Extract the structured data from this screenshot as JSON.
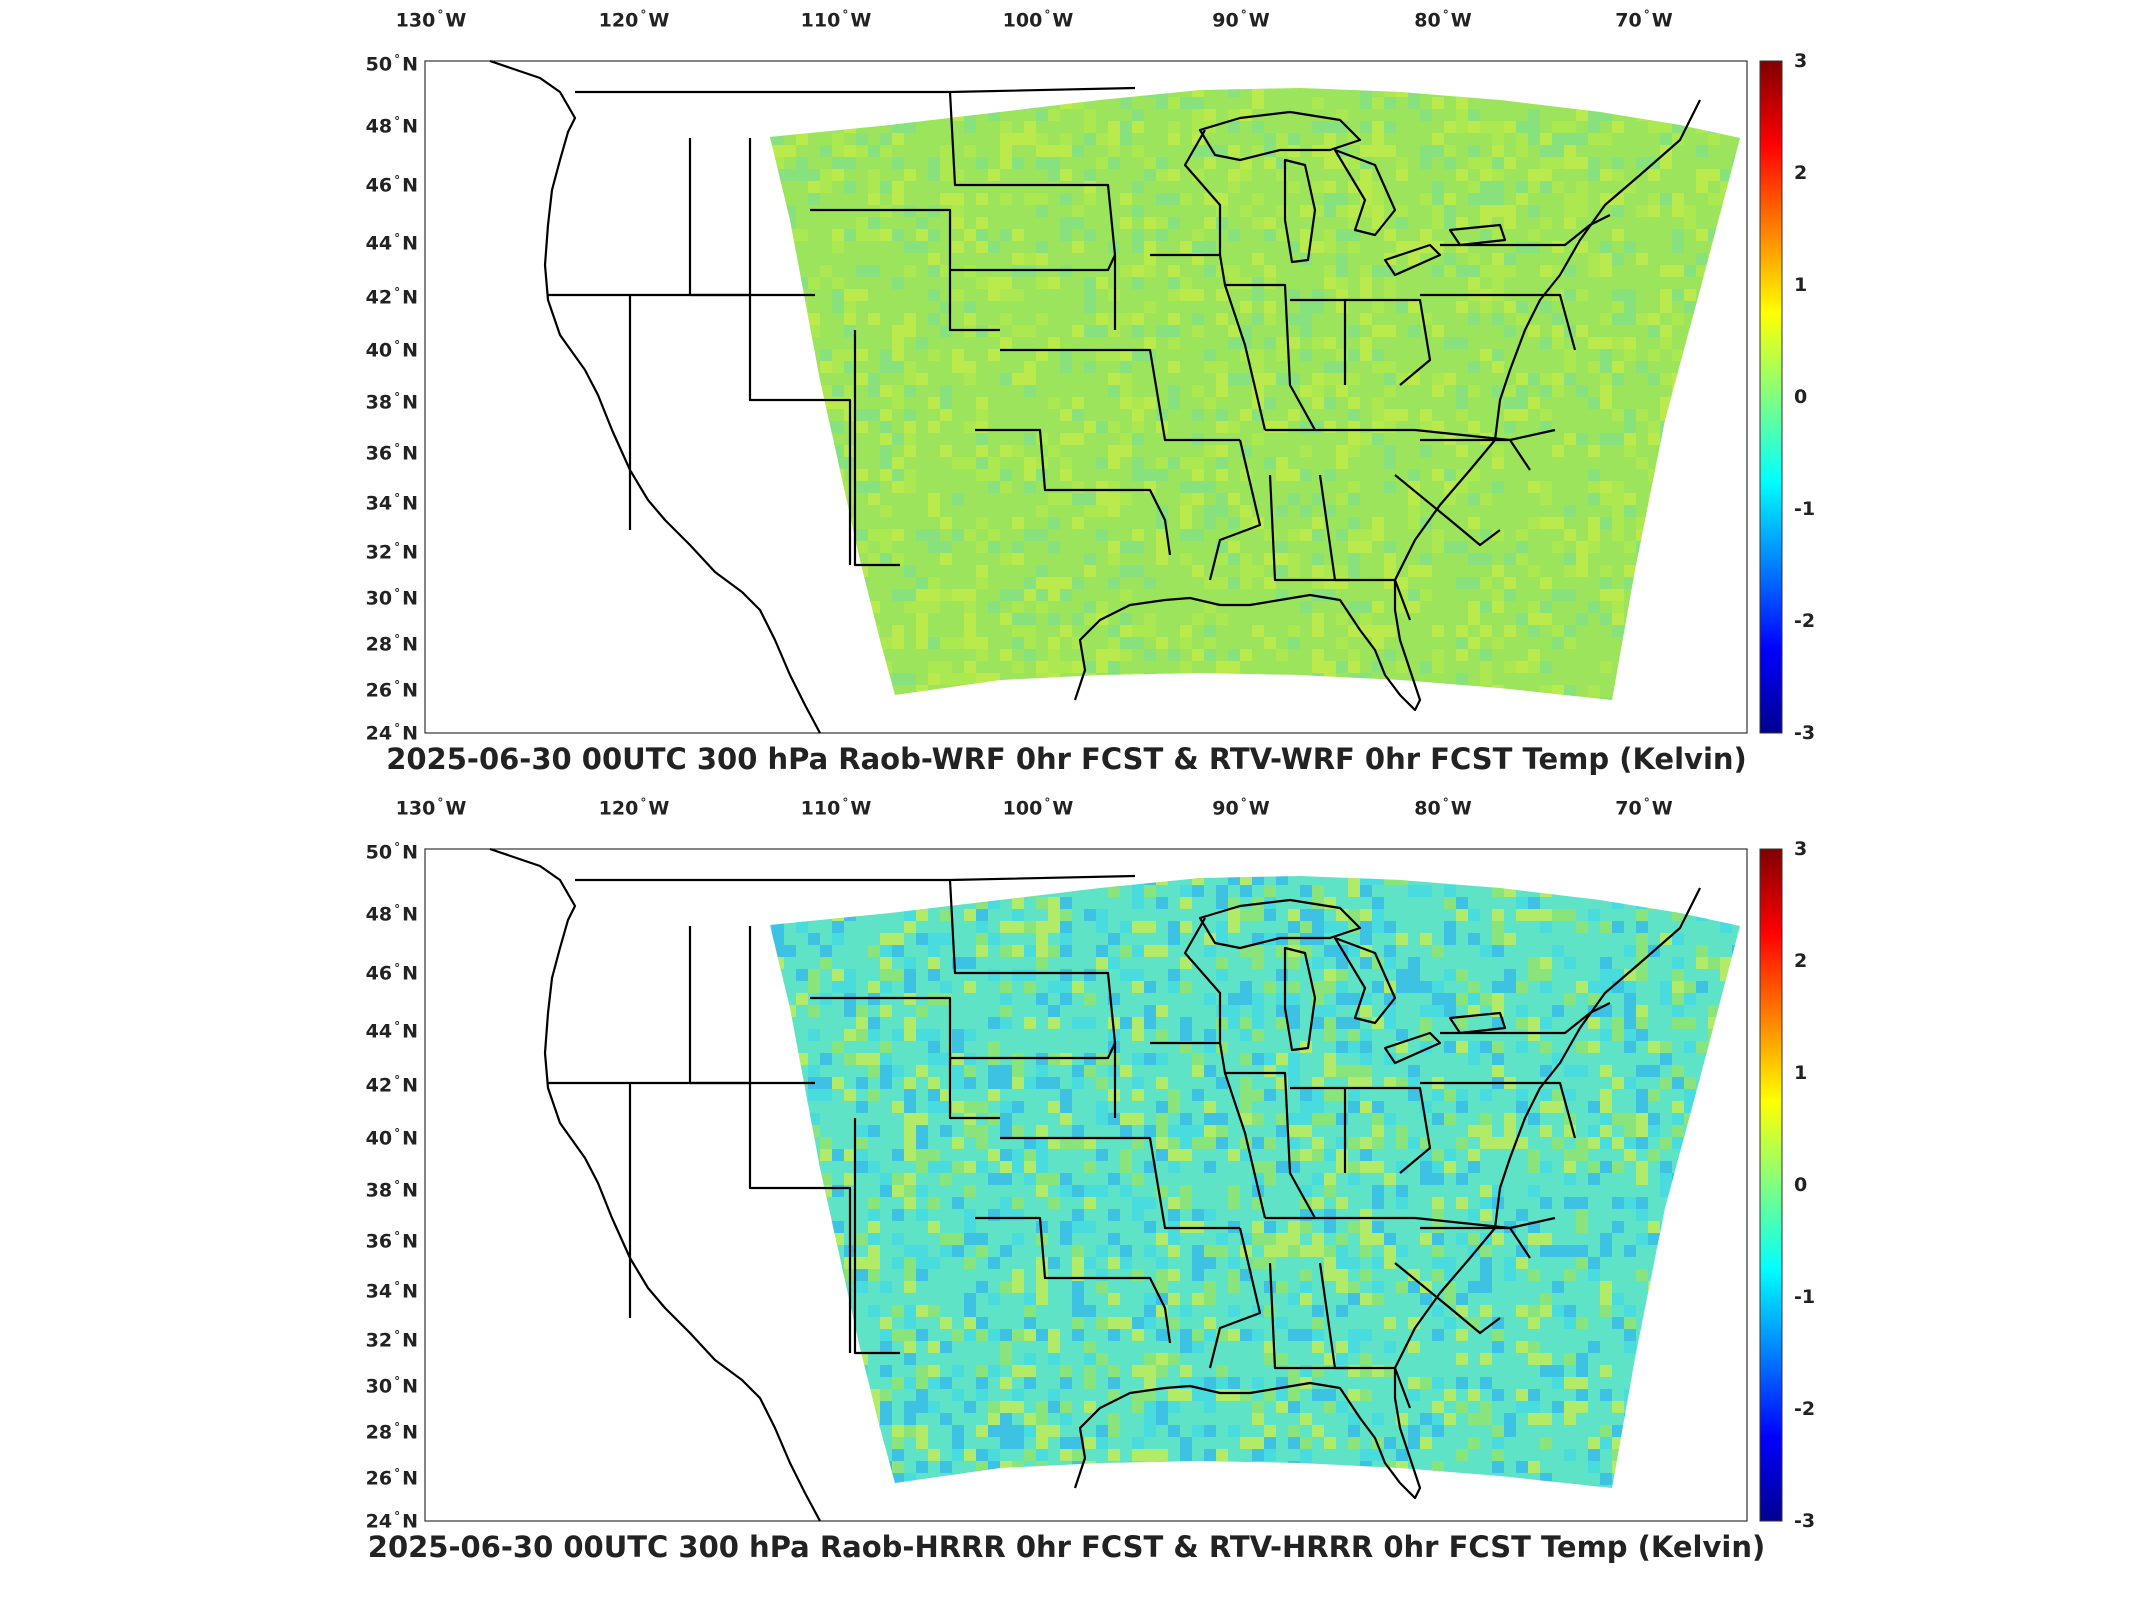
{
  "panels": [
    {
      "title": "2025-06-30 00UTC 300 hPa Raob-WRF 0hr FCST & RTV-WRF 0hr FCST Temp (Kelvin)",
      "colorbar": {
        "max": "3",
        "min": "-3",
        "ticks": [
          "3",
          "2",
          "1",
          "0",
          "-1",
          "-2",
          "-3"
        ]
      },
      "field_palette": [
        "#9be45b",
        "#b4ea4a",
        "#7fe08c",
        "#c7ed45"
      ]
    },
    {
      "title": "2025-06-30 00UTC 300 hPa Raob-HRRR 0hr FCST & RTV-HRRR 0hr FCST Temp (Kelvin)",
      "colorbar": {
        "max": "3",
        "min": "-3",
        "ticks": [
          "3",
          "2",
          "1",
          "0",
          "-1",
          "-2",
          "-3"
        ]
      },
      "field_palette": [
        "#5ee3c6",
        "#40d8e8",
        "#9be45b",
        "#d6ee40",
        "#2fb4f0"
      ]
    }
  ],
  "lon_labels": [
    {
      "deg": "130",
      "hemi": "W"
    },
    {
      "deg": "120",
      "hemi": "W"
    },
    {
      "deg": "110",
      "hemi": "W"
    },
    {
      "deg": "100",
      "hemi": "W"
    },
    {
      "deg": "90",
      "hemi": "W"
    },
    {
      "deg": "80",
      "hemi": "W"
    },
    {
      "deg": "70",
      "hemi": "W"
    }
  ],
  "lat_labels": [
    {
      "deg": "50",
      "hemi": "N"
    },
    {
      "deg": "48",
      "hemi": "N"
    },
    {
      "deg": "46",
      "hemi": "N"
    },
    {
      "deg": "44",
      "hemi": "N"
    },
    {
      "deg": "42",
      "hemi": "N"
    },
    {
      "deg": "40",
      "hemi": "N"
    },
    {
      "deg": "38",
      "hemi": "N"
    },
    {
      "deg": "36",
      "hemi": "N"
    },
    {
      "deg": "34",
      "hemi": "N"
    },
    {
      "deg": "32",
      "hemi": "N"
    },
    {
      "deg": "30",
      "hemi": "N"
    },
    {
      "deg": "28",
      "hemi": "N"
    },
    {
      "deg": "26",
      "hemi": "N"
    },
    {
      "deg": "24",
      "hemi": "N"
    }
  ],
  "colormap": [
    "#00008f",
    "#0000ff",
    "#0080ff",
    "#00ffff",
    "#80ff80",
    "#ffff00",
    "#ff8000",
    "#ff0000",
    "#800000"
  ]
}
